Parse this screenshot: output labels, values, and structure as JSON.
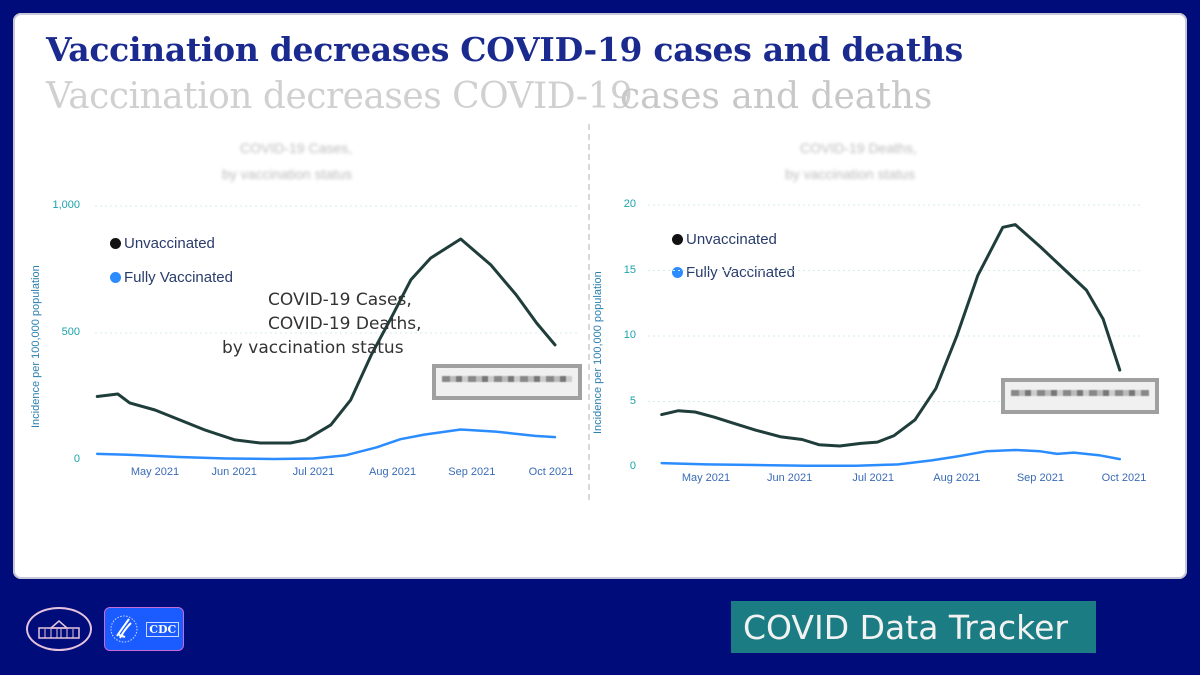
{
  "slide": {
    "title": "Vaccination decreases COVID-19 cases and deaths",
    "ghost_title_line1": "Vaccination decreases COVID-19",
    "ghost_title_line2": "cases and deaths",
    "overlay_text_1": "COVID-19 Cases,",
    "overlay_text_2": "COVID-19 Deaths,",
    "overlay_text_3": "by vaccination status",
    "tracker_label": "COVID Data Tracker",
    "logos": [
      {
        "name": "white-house-seal",
        "text": ""
      },
      {
        "name": "cdc-logo",
        "text": "CDC"
      }
    ]
  },
  "colors": {
    "background": "#000c7a",
    "title": "#1a2a8f",
    "unvaccinated": "#1f3d3a",
    "fully_vaccinated": "#2b8cff",
    "tracker_bg": "#1b7d83"
  },
  "chart_data": [
    {
      "type": "line",
      "title": "COVID-19 Cases,",
      "subtitle": "by vaccination status",
      "xlabel": "",
      "ylabel": "Incidence per 100,000 population",
      "ylim": [
        0,
        1000
      ],
      "yticks": [
        "0",
        "500",
        "1,000"
      ],
      "ytick_values": [
        0,
        500,
        1000
      ],
      "xticks": [
        "May 2021",
        "Jun 2021",
        "Jul 2021",
        "Aug 2021",
        "Sep 2021",
        "Oct 2021"
      ],
      "xtick_values": [
        1,
        2,
        3,
        4,
        5,
        6
      ],
      "xlim": [
        0.25,
        6.1
      ],
      "grid": true,
      "legend": "top-left",
      "annotation": "Data blurred",
      "series": [
        {
          "name": "Unvaccinated",
          "x": [
            0.27,
            0.53,
            0.68,
            1.0,
            1.32,
            1.63,
            2.01,
            2.33,
            2.71,
            2.9,
            3.22,
            3.47,
            3.73,
            4.0,
            4.23,
            4.48,
            4.86,
            5.24,
            5.56,
            5.82,
            6.05
          ],
          "y": [
            250,
            260,
            225,
            197,
            157,
            118,
            79,
            67,
            67,
            79,
            138,
            236,
            413,
            570,
            709,
            795,
            870,
            768,
            650,
            539,
            453
          ]
        },
        {
          "name": "Fully Vaccinated",
          "x": [
            0.27,
            0.7,
            1.3,
            1.9,
            2.5,
            3.0,
            3.4,
            3.8,
            4.1,
            4.4,
            4.86,
            5.3,
            5.8,
            6.05
          ],
          "y": [
            24,
            20,
            12,
            6,
            4,
            6,
            18,
            50,
            82,
            100,
            120,
            112,
            95,
            90
          ]
        }
      ]
    },
    {
      "type": "line",
      "title": "COVID-19 Deaths,",
      "subtitle": "by vaccination status",
      "xlabel": "",
      "ylabel": "Incidence per 100,000 population",
      "ylim": [
        0,
        20
      ],
      "yticks": [
        "0",
        "5",
        "10",
        "15",
        "20"
      ],
      "ytick_values": [
        0,
        5,
        10,
        15,
        20
      ],
      "xticks": [
        "May 2021",
        "Jun 2021",
        "Jul 2021",
        "Aug 2021",
        "Sep 2021",
        "Oct 2021"
      ],
      "xtick_values": [
        1,
        2,
        3,
        4,
        5,
        6
      ],
      "xlim": [
        0.45,
        6.1
      ],
      "grid": true,
      "legend": "top-left",
      "annotation": "Data blurred",
      "series": [
        {
          "name": "Unvaccinated",
          "x": [
            0.47,
            0.67,
            0.87,
            1.1,
            1.35,
            1.6,
            1.9,
            2.15,
            2.35,
            2.6,
            2.85,
            3.05,
            3.25,
            3.5,
            3.75,
            4.0,
            4.25,
            4.55,
            4.7,
            5.0,
            5.3,
            5.55,
            5.75,
            5.95
          ],
          "y": [
            4.0,
            4.3,
            4.2,
            3.8,
            3.3,
            2.8,
            2.3,
            2.1,
            1.7,
            1.6,
            1.8,
            1.9,
            2.4,
            3.6,
            6.0,
            10.0,
            14.6,
            18.3,
            18.5,
            16.8,
            15.0,
            13.5,
            11.3,
            7.4
          ]
        },
        {
          "name": "Fully Vaccinated",
          "x": [
            0.47,
            1.0,
            1.6,
            2.2,
            2.8,
            3.3,
            3.7,
            4.0,
            4.35,
            4.7,
            5.0,
            5.2,
            5.4,
            5.7,
            5.95
          ],
          "y": [
            0.3,
            0.2,
            0.15,
            0.1,
            0.1,
            0.2,
            0.5,
            0.8,
            1.2,
            1.3,
            1.2,
            1.0,
            1.1,
            0.9,
            0.6
          ]
        }
      ]
    }
  ]
}
